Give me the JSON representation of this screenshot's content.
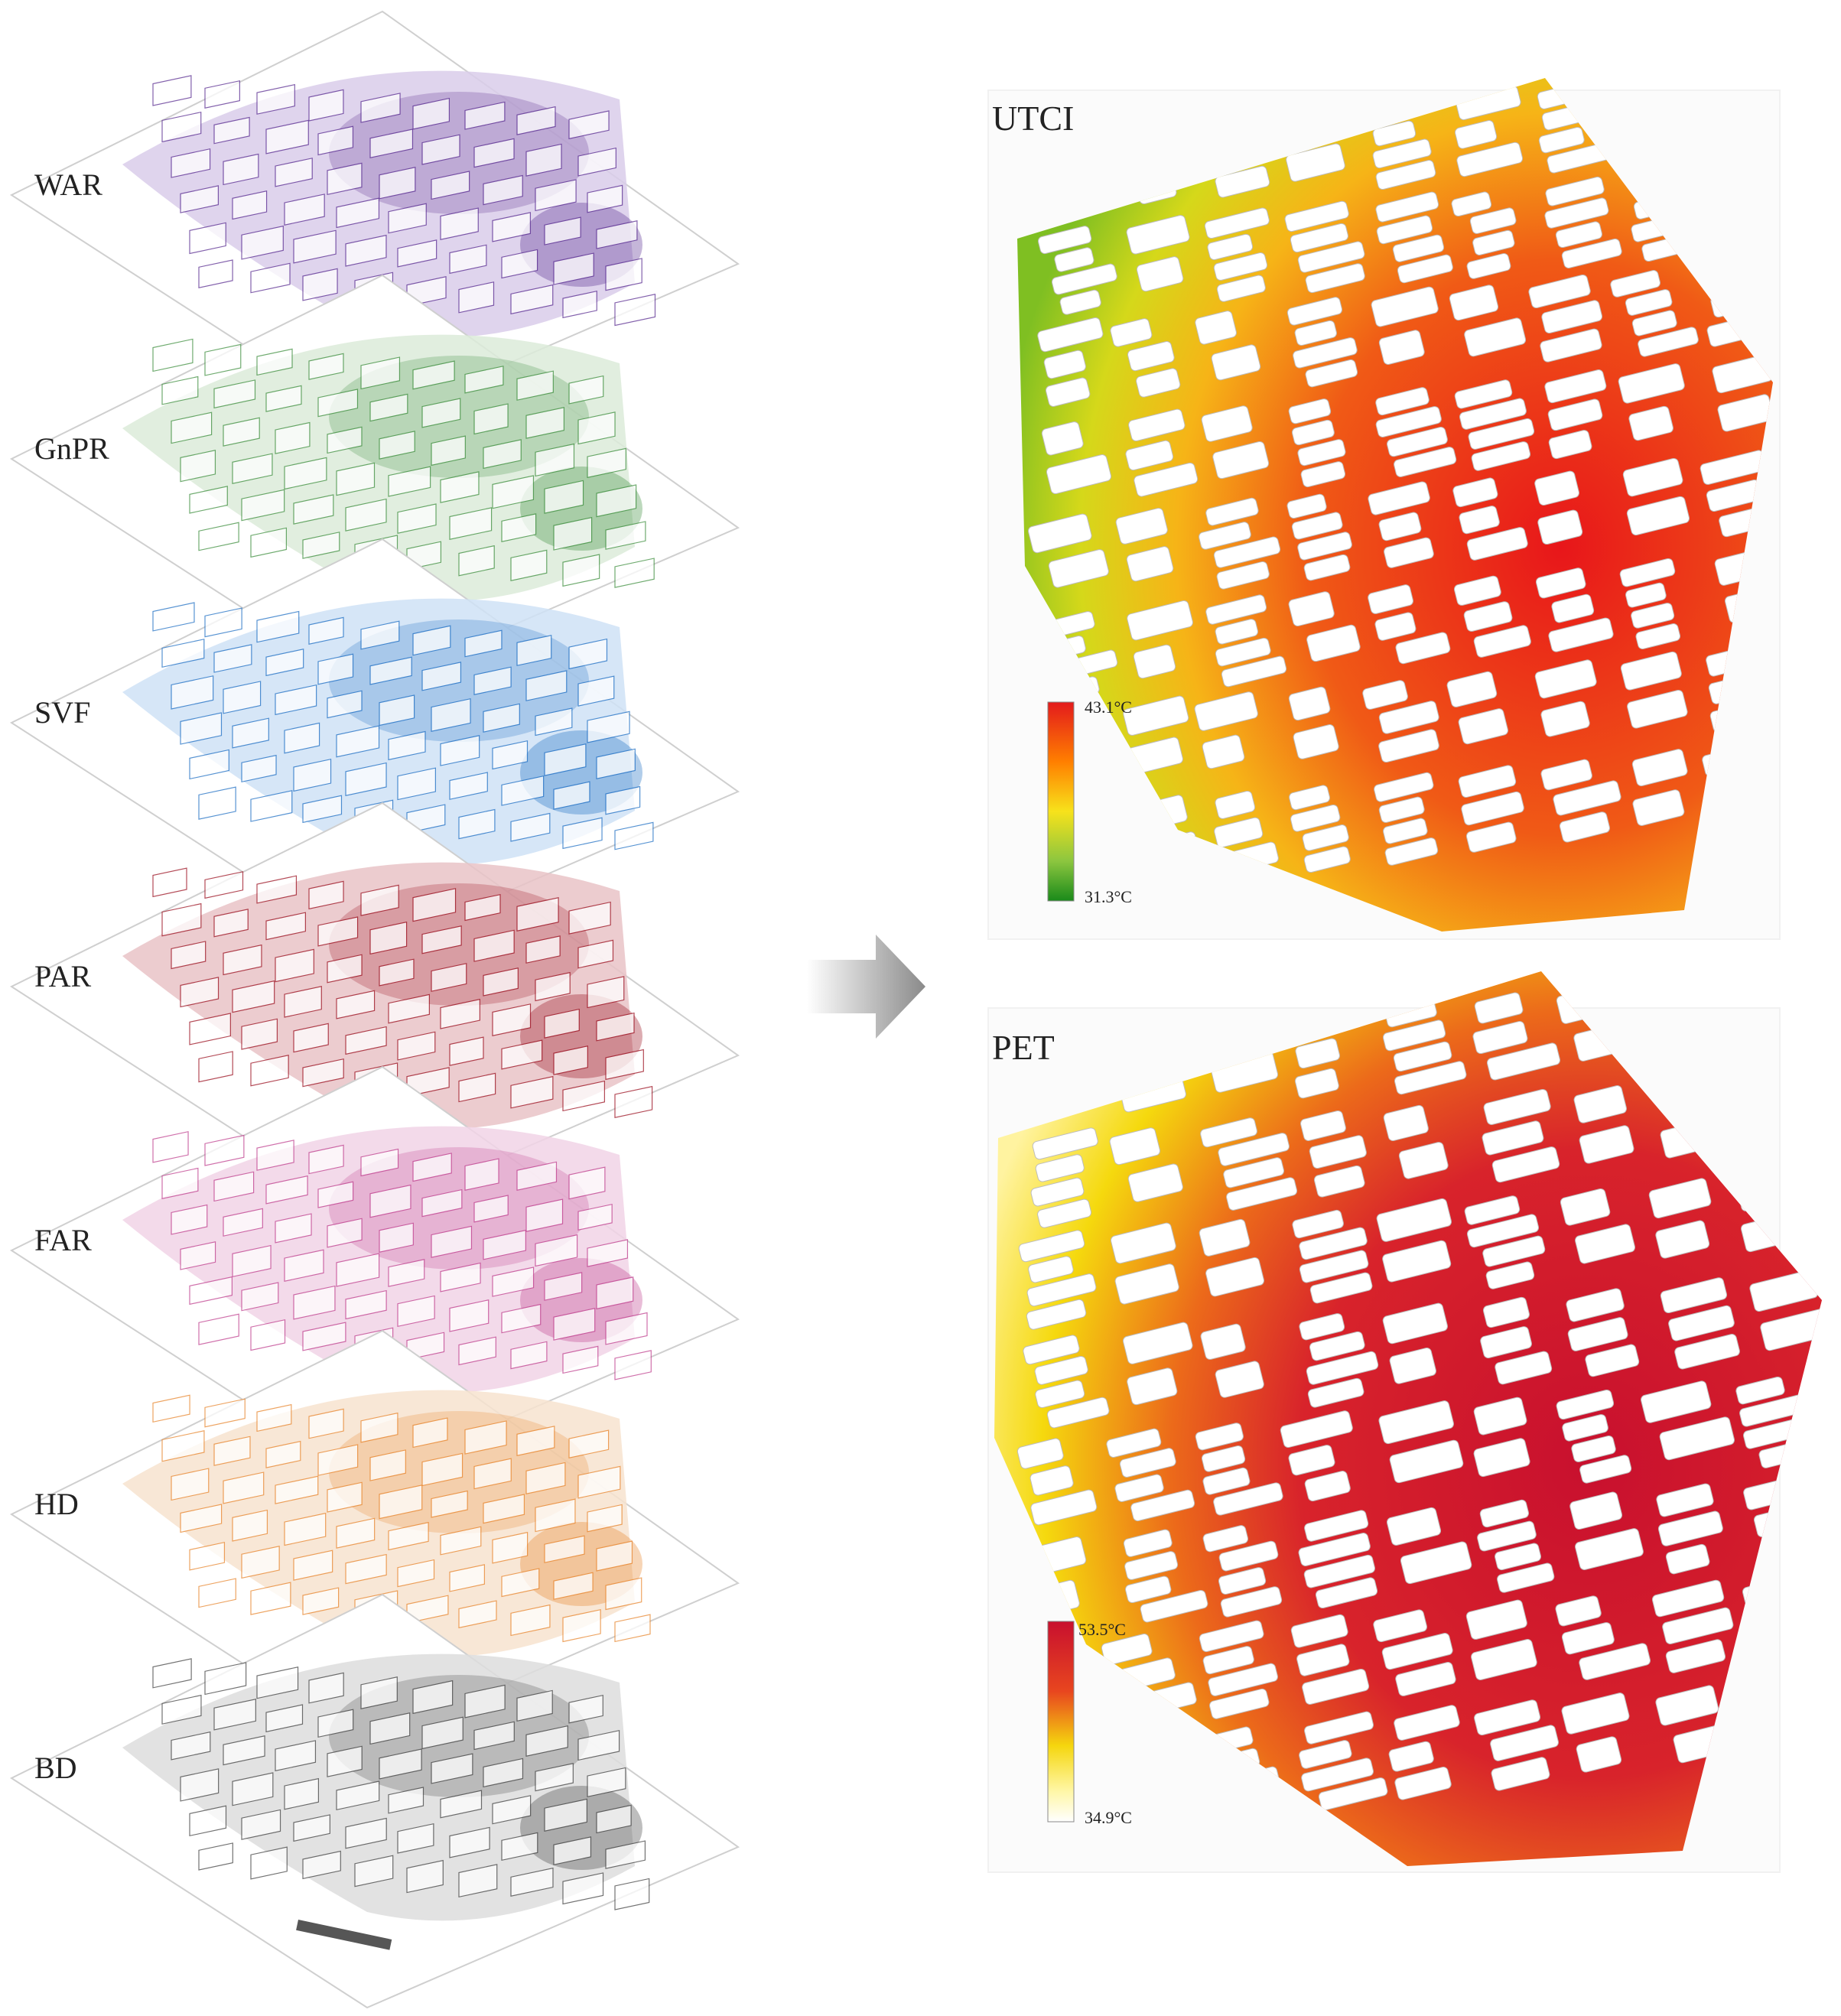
{
  "layers": [
    {
      "id": "war",
      "label": "WAR",
      "color": "#5a2d91",
      "light": "#d9cdea"
    },
    {
      "id": "gnpr",
      "label": "GnPR",
      "color": "#3f8f3f",
      "light": "#dcebd9"
    },
    {
      "id": "svf",
      "label": "SVF",
      "color": "#1f6fc4",
      "light": "#cfe2f6"
    },
    {
      "id": "par",
      "label": "PAR",
      "color": "#9b1020",
      "light": "#e9c3c7"
    },
    {
      "id": "far",
      "label": "FAR",
      "color": "#c0418f",
      "light": "#f1d3e6"
    },
    {
      "id": "hd",
      "label": "HD",
      "color": "#e8862e",
      "light": "#f7e3cf"
    },
    {
      "id": "bd",
      "label": "BD",
      "color": "#444444",
      "light": "#dddddd"
    }
  ],
  "maps": {
    "utci": {
      "title": "UTCI",
      "max_label": "43.1°C",
      "min_label": "31.3°C",
      "max_value": 43.1,
      "min_value": 31.3,
      "colors": [
        "#e31a1c",
        "#ff7f00",
        "#f7e21b",
        "#8cc63f",
        "#1a8a1a"
      ]
    },
    "pet": {
      "title": "PET",
      "max_label": "53.5°C",
      "min_label": "34.9°C",
      "max_value": 53.5,
      "min_value": 34.9,
      "colors": [
        "#c8102e",
        "#e8461f",
        "#f5d60e",
        "#fff7a8",
        "#ffffff"
      ]
    }
  }
}
